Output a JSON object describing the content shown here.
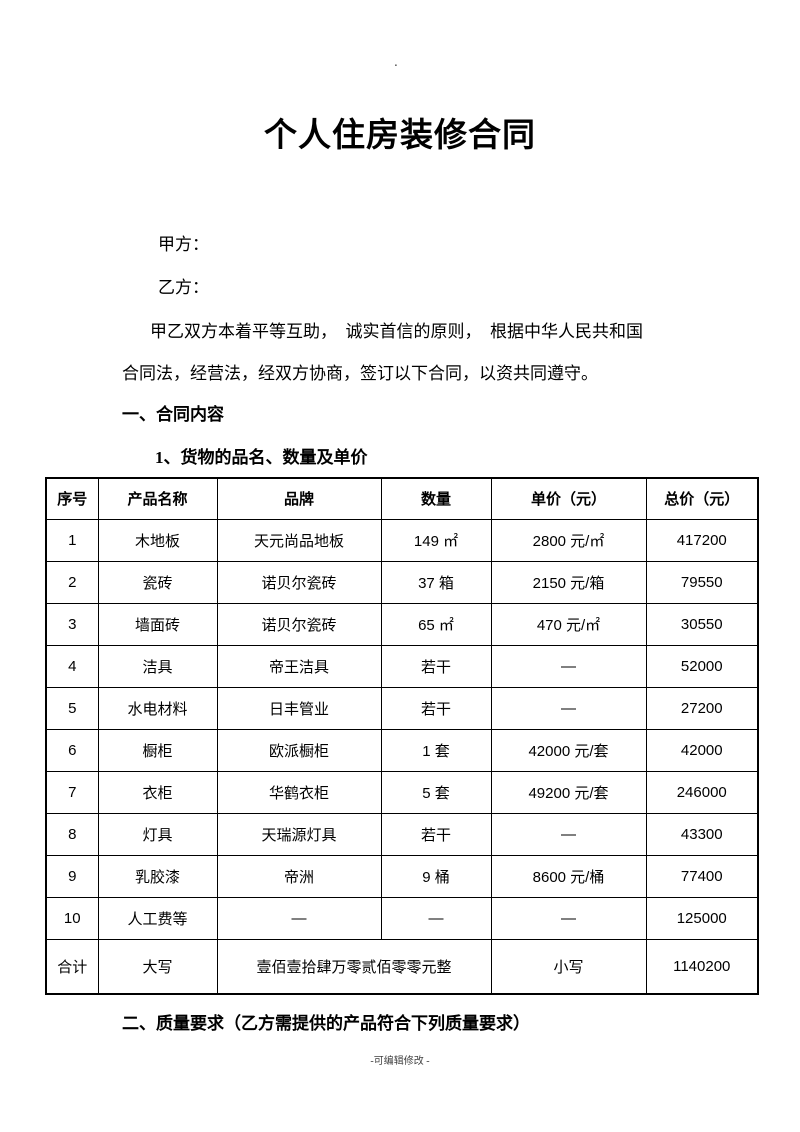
{
  "colors": {
    "page_background": "#ffffff",
    "text": "#000000",
    "table_border": "#000000",
    "footer_text": "#404040"
  },
  "page": {
    "top_mark": ".",
    "title": "个人住房装修合同",
    "party_a_label": "甲方：",
    "party_b_label": "乙方：",
    "intro_line1": "甲乙双方本着平等互助，　诚实首信的原则，　根据中华人民共和国",
    "intro_line2": "合同法，经营法，经双方协商，签订以下合同，以资共同遵守。",
    "section1_heading": "一、合同内容",
    "subsection1_heading": "1、货物的品名、数量及单价",
    "section2_heading": "二、质量要求（乙方需提供的产品符合下列质量要求）",
    "footer_note": "-可编辑修改 -"
  },
  "table": {
    "headers": [
      "序号",
      "产品名称",
      "品牌",
      "数量",
      "单价（元）",
      "总价（元）"
    ],
    "rows": [
      [
        "1",
        "木地板",
        "天元尚品地板",
        "149 ㎡",
        "2800 元/㎡",
        "417200"
      ],
      [
        "2",
        "瓷砖",
        "诺贝尔瓷砖",
        "37 箱",
        "2150 元/箱",
        "79550"
      ],
      [
        "3",
        "墙面砖",
        "诺贝尔瓷砖",
        "65 ㎡",
        "470 元/㎡",
        "30550"
      ],
      [
        "4",
        "洁具",
        "帝王洁具",
        "若干",
        "—",
        "52000"
      ],
      [
        "5",
        "水电材料",
        "日丰管业",
        "若干",
        "—",
        "27200"
      ],
      [
        "6",
        "橱柜",
        "欧派橱柜",
        "1 套",
        "42000 元/套",
        "42000"
      ],
      [
        "7",
        "衣柜",
        "华鹤衣柜",
        "5 套",
        "49200 元/套",
        "246000"
      ],
      [
        "8",
        "灯具",
        "天瑞源灯具",
        "若干",
        "—",
        "43300"
      ],
      [
        "9",
        "乳胶漆",
        "帝洲",
        "9 桶",
        "8600 元/桶",
        "77400"
      ],
      [
        "10",
        "人工费等",
        "—",
        "—",
        "—",
        "125000"
      ]
    ],
    "total_row": {
      "label": "合计",
      "words_label": "大写",
      "words_value": "壹佰壹拾肆万零贰佰零零元整",
      "figures_label": "小写",
      "figures_value": "1140200"
    }
  }
}
